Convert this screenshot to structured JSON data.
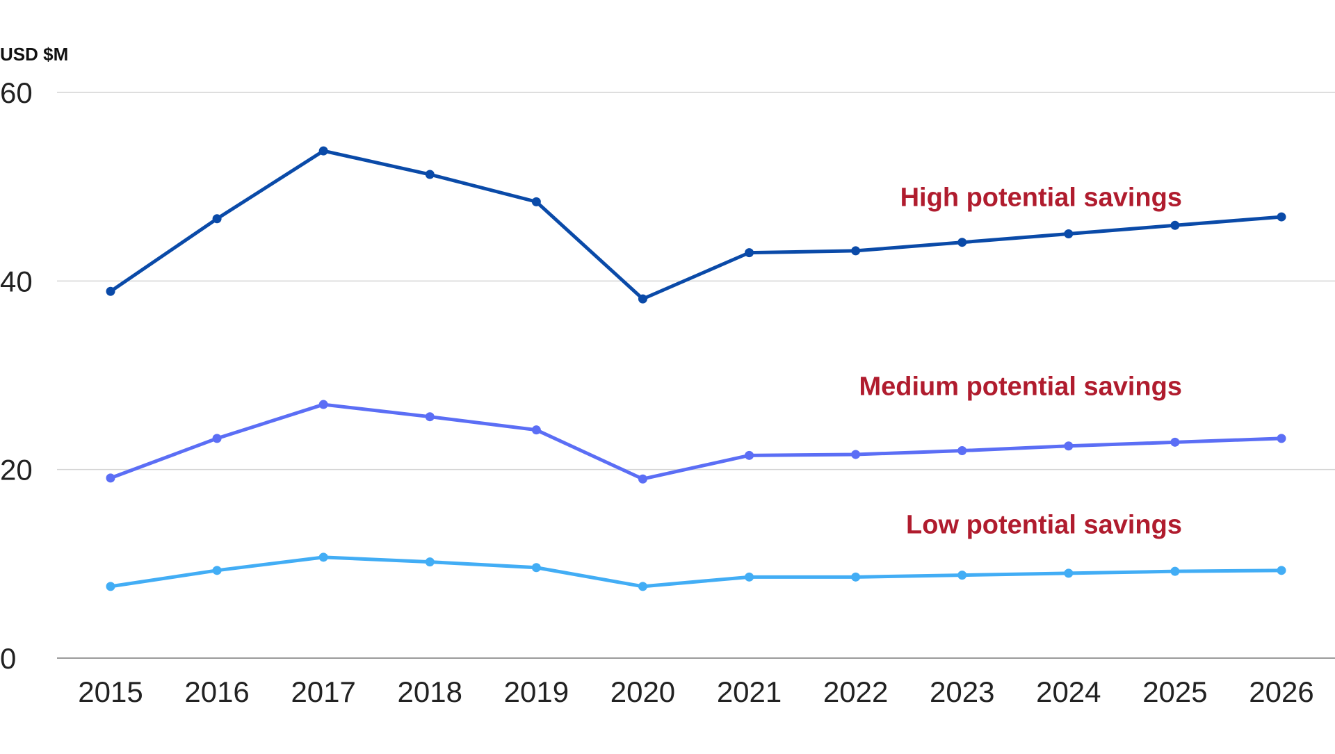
{
  "chart_data": {
    "type": "line",
    "title": "",
    "xlabel": "",
    "ylabel": "USD $M",
    "ylim": [
      0,
      60
    ],
    "yticks": [
      0,
      20,
      40,
      60
    ],
    "grid": true,
    "x": [
      "2015",
      "2016",
      "2017",
      "2018",
      "2019",
      "2020",
      "2021",
      "2022",
      "2023",
      "2024",
      "2025",
      "2026"
    ],
    "series": [
      {
        "name": "High potential savings",
        "color": "#0a4aa8",
        "values": [
          38.9,
          46.6,
          53.8,
          51.3,
          48.4,
          38.1,
          43.0,
          43.2,
          44.1,
          45.0,
          45.9,
          46.8
        ]
      },
      {
        "name": "Medium potential savings",
        "color": "#5b6ef5",
        "values": [
          19.1,
          23.3,
          26.9,
          25.6,
          24.2,
          19.0,
          21.5,
          21.6,
          22.0,
          22.5,
          22.9,
          23.3
        ]
      },
      {
        "name": "Low potential savings",
        "color": "#42adf5",
        "values": [
          7.6,
          9.3,
          10.7,
          10.2,
          9.6,
          7.6,
          8.6,
          8.6,
          8.8,
          9.0,
          9.2,
          9.3
        ]
      }
    ],
    "label_color": "#b01c2e"
  }
}
